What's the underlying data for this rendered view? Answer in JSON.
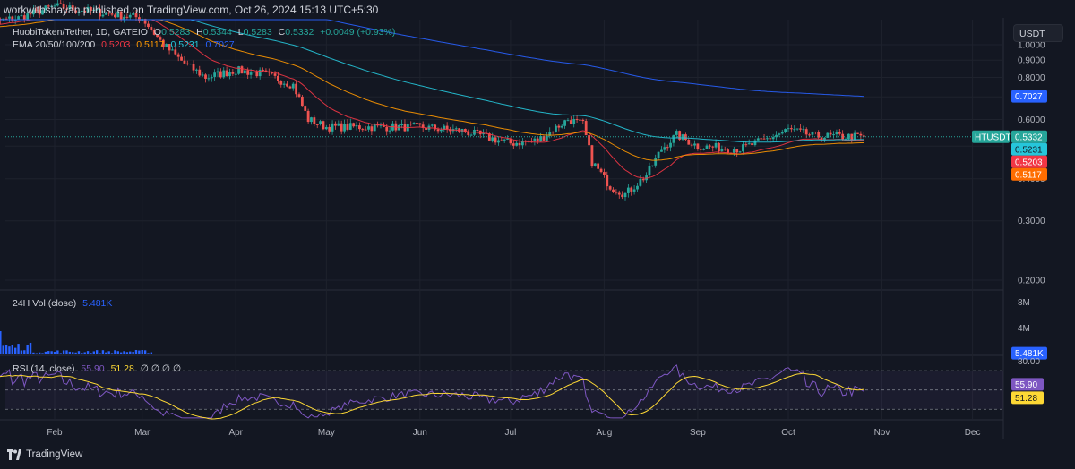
{
  "header": {
    "publisher": "workwithshayan published on TradingView.com, Oct 26, 2024 15:13 UTC+5:30",
    "currency_button": "USDT",
    "footer_brand": "TradingView"
  },
  "legend": {
    "symbol": "HuobiToken/Tether, 1D, GATEIO",
    "o_label": "O",
    "o_value": "0.5283",
    "h_label": "H",
    "h_value": "0.5344",
    "l_label": "L",
    "l_value": "0.5283",
    "c_label": "C",
    "c_value": "0.5332",
    "change": "+0.0049 (+0.93%)",
    "ema_label": "EMA 20/50/100/200",
    "ema20": "0.5203",
    "ema50": "0.5117",
    "ema100": "0.5231",
    "ema200": "0.7027",
    "vol_label": "24H Vol (close)",
    "vol_value": "5.481K",
    "rsi_label": "RSI (14, close)",
    "rsi_value": "55.90",
    "rsi_ma": "51.28",
    "rsi_extra": "∅ ∅ ∅ ∅"
  },
  "chart_data": {
    "type": "candlestick",
    "symbol": "HTUSDT",
    "price_axis": {
      "ticks": [
        "0.2000",
        "0.3000",
        "0.4000",
        "0.5000",
        "0.6000",
        "0.7000",
        "0.8000",
        "0.9000",
        "1.0000"
      ],
      "scale": "log"
    },
    "x_ticks": [
      "Feb",
      "Mar",
      "Apr",
      "May",
      "Jun",
      "Jul",
      "Aug",
      "Sep",
      "Oct",
      "Nov",
      "Dec"
    ],
    "price_tags": [
      {
        "label": "HTUSDT",
        "value": "0.5332",
        "color": "#26a69a"
      },
      {
        "value": "0.5231",
        "color": "#26c6da"
      },
      {
        "value": "0.5203",
        "color": "#f23645"
      },
      {
        "value": "0.5117",
        "color": "#ff6d00"
      },
      {
        "value": "0.7027",
        "color": "#2962ff"
      }
    ],
    "price_path": [
      [
        "Jan 5",
        1.15
      ],
      [
        "Jan 20",
        1.2
      ],
      [
        "Feb 1",
        1.3
      ],
      [
        "Feb 15",
        1.25
      ],
      [
        "Mar 1",
        1.2
      ],
      [
        "Mar 8",
        1.0
      ],
      [
        "Mar 15",
        0.88
      ],
      [
        "Mar 22",
        0.8
      ],
      [
        "Apr 1",
        0.84
      ],
      [
        "Apr 10",
        0.82
      ],
      [
        "Apr 20",
        0.76
      ],
      [
        "Apr 25",
        0.6
      ],
      [
        "May 1",
        0.57
      ],
      [
        "May 15",
        0.57
      ],
      [
        "Jun 1",
        0.57
      ],
      [
        "Jun 15",
        0.555
      ],
      [
        "Jul 1",
        0.51
      ],
      [
        "Jul 10",
        0.52
      ],
      [
        "Jul 20",
        0.6
      ],
      [
        "Jul 25",
        0.58
      ],
      [
        "Jul 28",
        0.45
      ],
      [
        "Aug 3",
        0.38
      ],
      [
        "Aug 8",
        0.36
      ],
      [
        "Aug 15",
        0.41
      ],
      [
        "Aug 20",
        0.49
      ],
      [
        "Aug 25",
        0.54
      ],
      [
        "Sep 1",
        0.5
      ],
      [
        "Sep 15",
        0.49
      ],
      [
        "Sep 25",
        0.53
      ],
      [
        "Oct 1",
        0.56
      ],
      [
        "Oct 10",
        0.535
      ],
      [
        "Oct 26",
        0.5332
      ]
    ],
    "ema_series": [
      {
        "name": "EMA 20",
        "color": "#f23645",
        "last": 0.5203
      },
      {
        "name": "EMA 50",
        "color": "#ff9800",
        "last": 0.5117
      },
      {
        "name": "EMA 100",
        "color": "#26c6da",
        "last": 0.5231
      },
      {
        "name": "EMA 200",
        "color": "#2962ff",
        "last": 0.7027
      }
    ],
    "volume": {
      "ticks": [
        "4M",
        "8M"
      ],
      "last": "5.481K"
    },
    "rsi": {
      "levels": [
        30,
        50,
        70
      ],
      "top_tick": "80.00",
      "last": 55.9,
      "ma_last": 51.28
    }
  }
}
